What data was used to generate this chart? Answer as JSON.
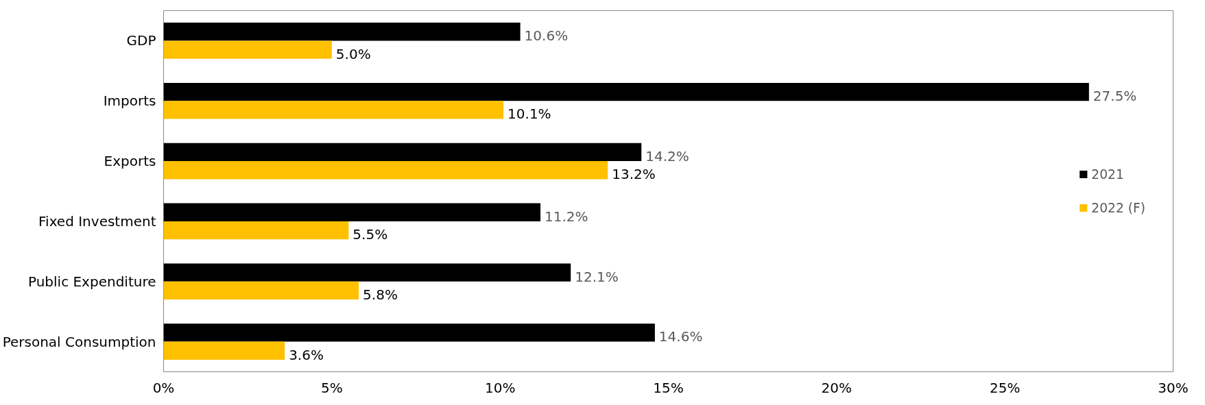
{
  "chart_data": {
    "type": "bar",
    "orientation": "horizontal",
    "categories": [
      "GDP",
      "Imports",
      "Exports",
      "Fixed Investment",
      "Public Expenditure",
      "Personal Consumption"
    ],
    "series": [
      {
        "name": "2021",
        "color": "#000000",
        "values": [
          10.6,
          27.5,
          14.2,
          11.2,
          12.1,
          14.6
        ],
        "value_labels": [
          "10.6%",
          "27.5%",
          "14.2%",
          "11.2%",
          "12.1%",
          "14.6%"
        ]
      },
      {
        "name": "2022 (F)",
        "color": "#ffc000",
        "values": [
          5.0,
          10.1,
          13.2,
          5.5,
          5.8,
          3.6
        ],
        "value_labels": [
          "5.0%",
          "10.1%",
          "13.2%",
          "5.5%",
          "5.8%",
          "3.6%"
        ]
      }
    ],
    "xlim": [
      0,
      30
    ],
    "xticks": [
      {
        "value": 0,
        "label": "0%"
      },
      {
        "value": 5,
        "label": "5%"
      },
      {
        "value": 10,
        "label": "10%"
      },
      {
        "value": 15,
        "label": "15%"
      },
      {
        "value": 20,
        "label": "20%"
      },
      {
        "value": 25,
        "label": "25%"
      },
      {
        "value": 30,
        "label": "30%"
      }
    ],
    "grid": false,
    "legend": "right"
  }
}
